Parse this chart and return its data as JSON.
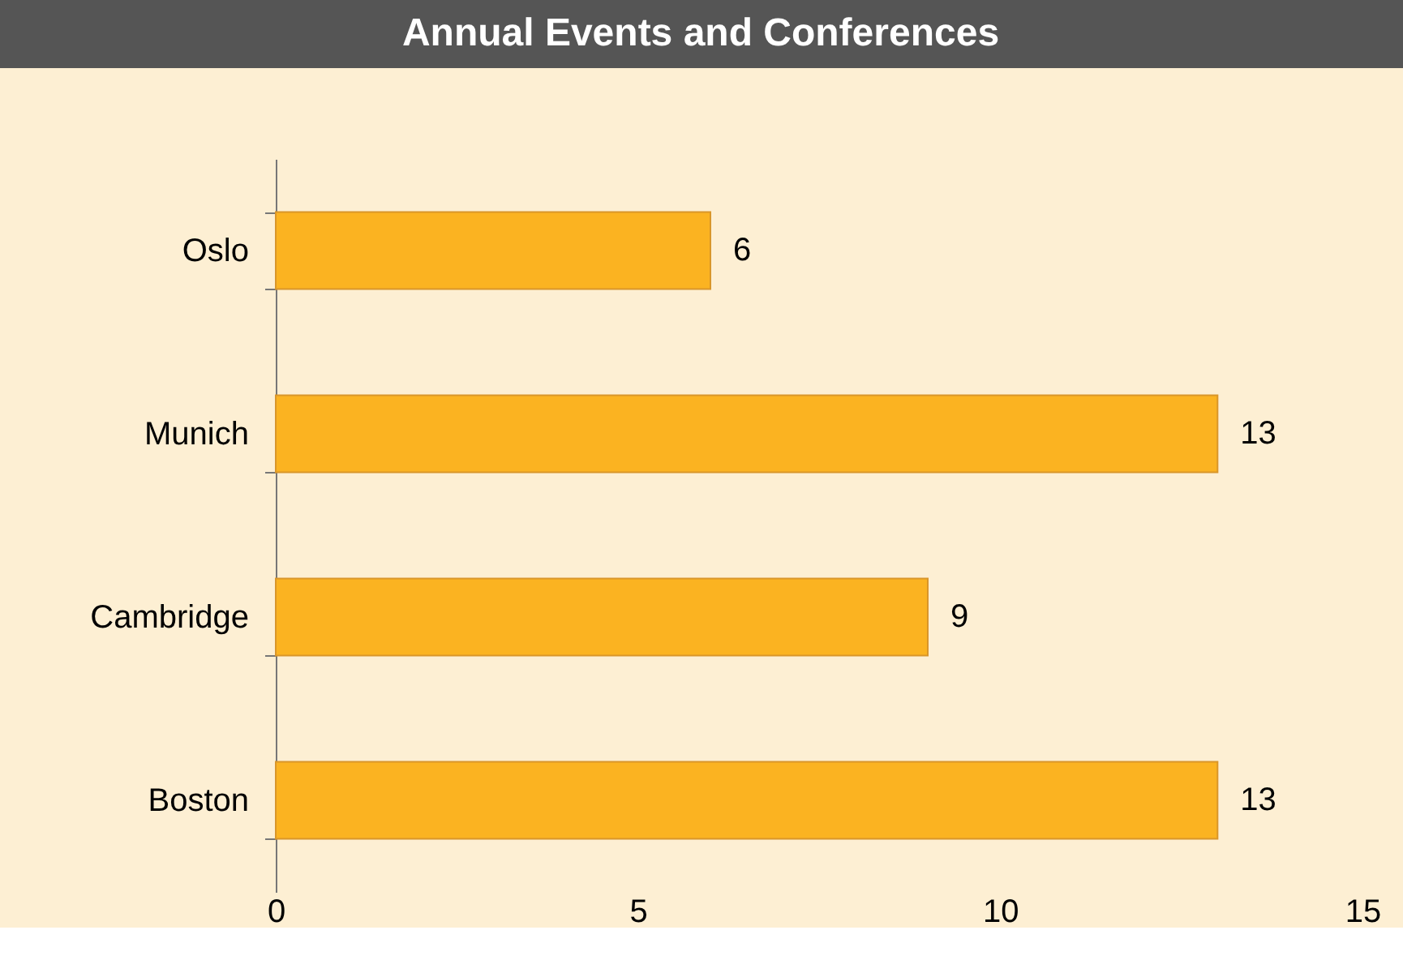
{
  "chart_data": {
    "type": "bar",
    "orientation": "horizontal",
    "title": "Annual Events and Conferences",
    "categories": [
      "Oslo",
      "Munich",
      "Cambridge",
      "Boston"
    ],
    "values": [
      6,
      13,
      9,
      13
    ],
    "color": "#fbb321",
    "xlim": [
      0,
      15
    ],
    "xticks": [
      0,
      5,
      10,
      15
    ],
    "grid": false,
    "data_labels": true
  }
}
